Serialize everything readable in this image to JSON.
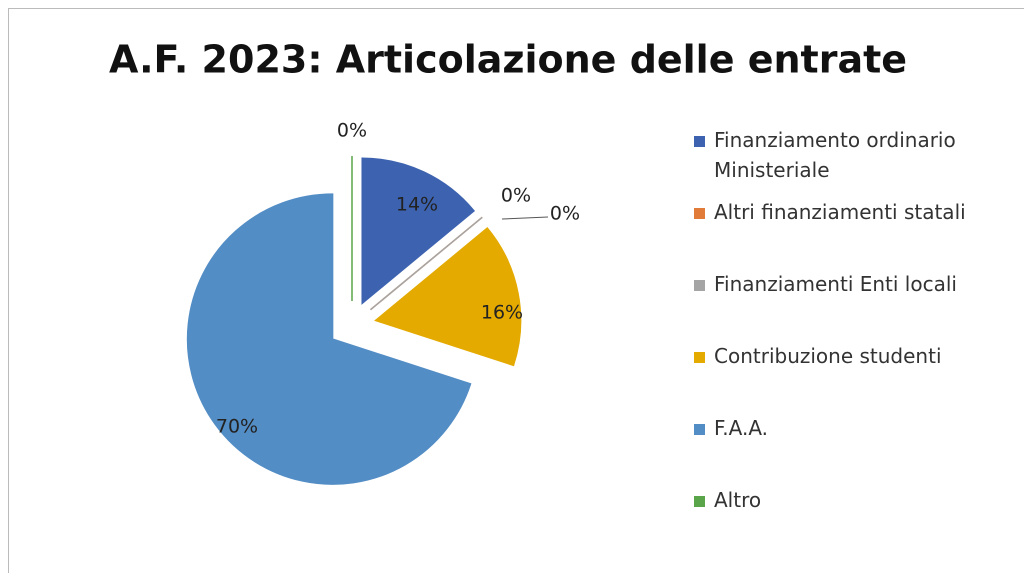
{
  "chart_data": {
    "type": "pie",
    "title": "A.F. 2023: Articolazione delle entrate",
    "categories": [
      "Finanziamento ordinario Ministeriale",
      "Altri finanziamenti statali",
      "Finanziamenti Enti locali",
      "Contribuzione studenti",
      "F.A.A.",
      "Altro"
    ],
    "values": [
      14,
      0,
      0,
      16,
      70,
      0
    ],
    "value_labels": [
      "14%",
      "0%",
      "0%",
      "16%",
      "70%",
      "0%"
    ],
    "colors": [
      "#3d63b0",
      "#e07b39",
      "#a5a5a5",
      "#e4aa00",
      "#538dc5",
      "#5aa54a"
    ],
    "legend": "right"
  }
}
